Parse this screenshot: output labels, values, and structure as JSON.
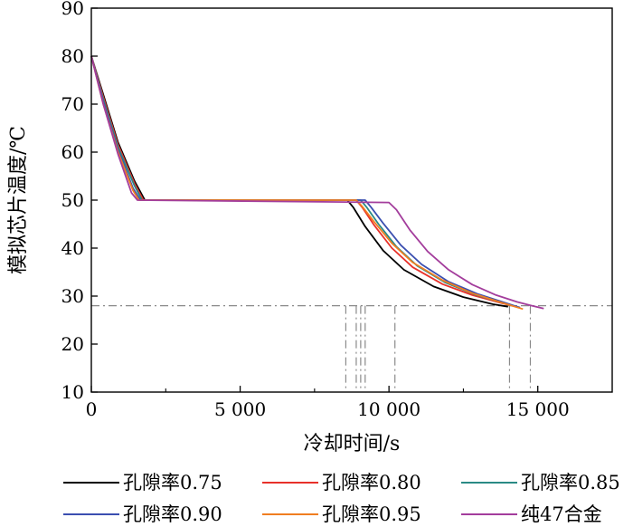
{
  "chart_data": {
    "type": "line",
    "title": "",
    "xlabel": "冷却时间/s",
    "ylabel": "模拟芯片温度/℃",
    "xlim": [
      0,
      17500
    ],
    "ylim": [
      10,
      90
    ],
    "x_ticks": [
      {
        "value": 0,
        "label": "0"
      },
      {
        "value": 5000,
        "label": "5 000"
      },
      {
        "value": 10000,
        "label": "10 000"
      },
      {
        "value": 15000,
        "label": "15 000"
      }
    ],
    "y_ticks": [
      {
        "value": 10,
        "label": "10"
      },
      {
        "value": 20,
        "label": "20"
      },
      {
        "value": 30,
        "label": "30"
      },
      {
        "value": 40,
        "label": "40"
      },
      {
        "value": 50,
        "label": "50"
      },
      {
        "value": 60,
        "label": "60"
      },
      {
        "value": 70,
        "label": "70"
      },
      {
        "value": 80,
        "label": "80"
      },
      {
        "value": 90,
        "label": "90"
      }
    ],
    "grid": false,
    "legend_position": "bottom",
    "reference_lines": {
      "horizontal_y": 28,
      "vertical_x": [
        8550,
        8900,
        9050,
        9200,
        10200,
        14050,
        14750
      ]
    },
    "series": [
      {
        "name": "孔隙率0.75",
        "color": "#000000",
        "x": [
          0,
          400,
          900,
          1450,
          1800,
          8600,
          8800,
          9200,
          9800,
          10500,
          11500,
          12500,
          13500,
          14000
        ],
        "y": [
          80,
          72,
          62,
          54,
          50,
          50,
          48.5,
          44.5,
          39.5,
          35.5,
          32,
          29.8,
          28.3,
          27.8
        ]
      },
      {
        "name": "孔隙率0.80",
        "color": "#e8312a",
        "x": [
          0,
          400,
          900,
          1450,
          1750,
          8900,
          9100,
          9500,
          10100,
          10800,
          11800,
          12800,
          13800,
          14400
        ],
        "y": [
          80,
          71.5,
          61.5,
          53.5,
          50,
          50,
          48.5,
          44.8,
          40,
          36,
          32.5,
          30.2,
          28.5,
          27.6
        ]
      },
      {
        "name": "孔隙率0.85",
        "color": "#2a8a85",
        "x": [
          0,
          400,
          900,
          1450,
          1700,
          9050,
          9250,
          9650,
          10250,
          10950,
          11900,
          12900,
          13800,
          14400
        ],
        "y": [
          80,
          71,
          61,
          53,
          50,
          50,
          48.5,
          45,
          40.3,
          36.3,
          32.8,
          30.3,
          28.6,
          27.6
        ]
      },
      {
        "name": "孔隙率0.90",
        "color": "#3b4fb0",
        "x": [
          0,
          400,
          900,
          1400,
          1650,
          9200,
          9400,
          9800,
          10400,
          11100,
          12000,
          13000,
          13900,
          14400
        ],
        "y": [
          80,
          70.5,
          60.5,
          52.5,
          50,
          50,
          48.5,
          45.2,
          40.6,
          36.6,
          33,
          30.4,
          28.6,
          27.6
        ]
      },
      {
        "name": "孔隙率0.95",
        "color": "#f07e21",
        "x": [
          0,
          400,
          900,
          1400,
          1600,
          8900,
          9100,
          9500,
          10100,
          10800,
          11800,
          12800,
          13800,
          14500
        ],
        "y": [
          80,
          70,
          60,
          52,
          50,
          50,
          48.7,
          45.5,
          41,
          37,
          33.3,
          30.6,
          28.6,
          27.3
        ]
      },
      {
        "name": "纯47合金",
        "color": "#a33d9c",
        "x": [
          0,
          400,
          900,
          1350,
          1550,
          10000,
          10250,
          10700,
          11300,
          12000,
          12800,
          13600,
          14300,
          14800,
          15200
        ],
        "y": [
          80,
          70,
          59.5,
          51.5,
          50,
          49.5,
          48,
          43.8,
          39.3,
          35.5,
          32.4,
          30.2,
          28.8,
          28,
          27.4
        ]
      }
    ]
  }
}
